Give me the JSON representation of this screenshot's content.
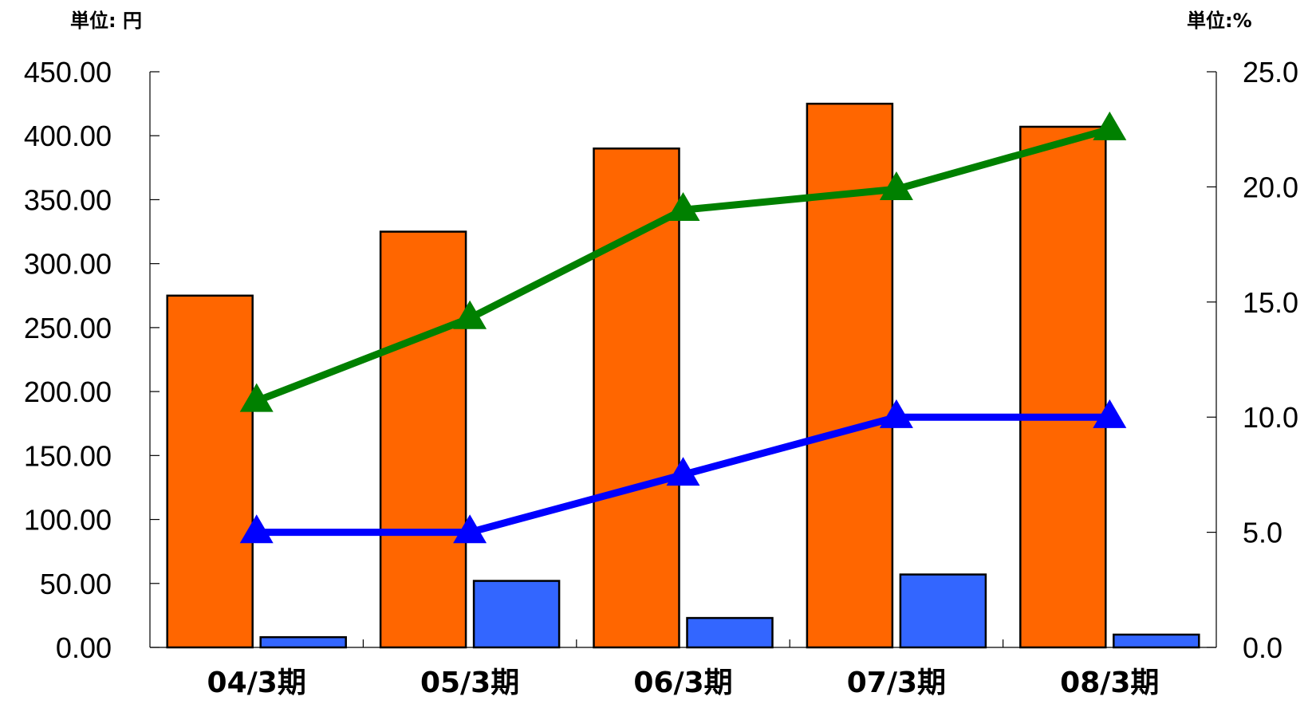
{
  "chart_data": {
    "type": "bar",
    "categories": [
      "04/3期",
      "05/3期",
      "06/3期",
      "07/3期",
      "08/3期"
    ],
    "left_axis": {
      "unit_label": "単位: 円",
      "ylim": [
        0,
        450
      ],
      "ticks": [
        "0.00",
        "50.00",
        "100.00",
        "150.00",
        "200.00",
        "250.00",
        "300.00",
        "350.00",
        "400.00",
        "450.00"
      ]
    },
    "right_axis": {
      "unit_label": "単位:%",
      "ylim": [
        0,
        25
      ],
      "ticks": [
        "0.0",
        "5.0",
        "10.0",
        "15.0",
        "20.0",
        "25.0"
      ]
    },
    "bar_series": [
      {
        "axis": "left",
        "color": "#FF6600",
        "values": [
          275,
          325,
          390,
          425,
          407
        ]
      },
      {
        "axis": "left",
        "color": "#3366FF",
        "values": [
          8,
          52,
          23,
          57,
          10
        ]
      }
    ],
    "line_series": [
      {
        "axis": "right",
        "color": "#008000",
        "marker": "triangle",
        "values": [
          10.7,
          14.3,
          19.0,
          19.9,
          22.5
        ]
      },
      {
        "axis": "right",
        "color": "#0000FF",
        "marker": "triangle",
        "values": [
          5.0,
          5.0,
          7.5,
          10.0,
          10.0
        ]
      }
    ],
    "grid": false,
    "legend": "none"
  }
}
